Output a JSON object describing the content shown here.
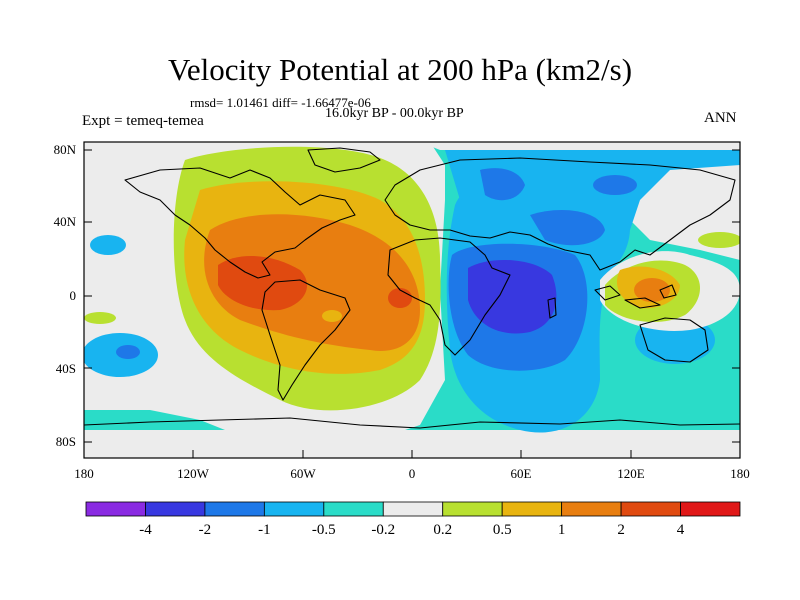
{
  "title": "Velocity Potential at 200 hPa (km2/s)",
  "stats": "rmsd= 1.01461 diff= -1.66477e-06",
  "period": "16.0kyr BP - 00.0kyr BP",
  "experiment": "Expt = temeq-temea",
  "season": "ANN",
  "lat_labels": [
    "80N",
    "40N",
    "0",
    "40S",
    "80S"
  ],
  "lon_labels": [
    "180",
    "120W",
    "60W",
    "0",
    "60E",
    "120E",
    "180"
  ],
  "colorbar": {
    "colors": [
      "#8a2be2",
      "#3838e0",
      "#1e78e8",
      "#18b4f0",
      "#2adcc8",
      "#ececec",
      "#b8e030",
      "#e8b410",
      "#e87e10",
      "#e04a10",
      "#e01818"
    ],
    "labels": [
      "-4",
      "-2",
      "-1",
      "-0.5",
      "-0.2",
      "0.2",
      "0.5",
      "1",
      "2",
      "4"
    ]
  }
}
